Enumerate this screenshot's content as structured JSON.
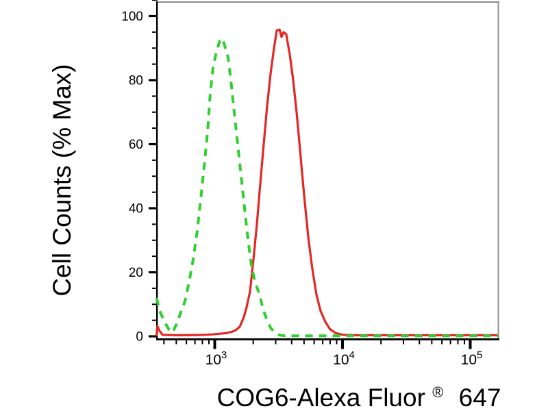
{
  "page": {
    "background": "#ffffff",
    "description_labels": {
      "ylabel": "Cell Counts (% Max)",
      "xlabel_full": "COG6-Alexa Fluor® 647"
    }
  },
  "chart_data": {
    "type": "line",
    "subtype": "flow-cytometry-histogram-overlay",
    "title": "",
    "ylabel": "Cell Counts (% Max)",
    "xlabel": {
      "main": "COG6-Alexa Fluor",
      "sup": "®",
      "suffix": "647"
    },
    "x_scale": "log10",
    "x_range": [
      350,
      167000
    ],
    "y_range": [
      0,
      105
    ],
    "grid": false,
    "legend": "none",
    "colors": {
      "axis": "#000000",
      "frame": "#8e8e8e",
      "background": "#ffffff"
    },
    "y_axis": {
      "major_ticks": [
        0,
        20,
        40,
        60,
        80,
        100
      ],
      "minor_ticks": [
        5,
        10,
        15,
        25,
        30,
        35,
        45,
        50,
        55,
        65,
        70,
        75,
        85,
        90,
        95,
        105
      ]
    },
    "x_axis": {
      "major_ticks": [
        {
          "value": 1000,
          "base": "10",
          "exponent": "3"
        },
        {
          "value": 10000,
          "base": "10",
          "exponent": "4"
        },
        {
          "value": 100000,
          "base": "10",
          "exponent": "5"
        }
      ],
      "minor_ticks": [
        400,
        500,
        600,
        700,
        800,
        900,
        2000,
        3000,
        4000,
        5000,
        6000,
        7000,
        8000,
        9000,
        20000,
        30000,
        40000,
        50000,
        60000,
        70000,
        80000,
        90000
      ]
    },
    "series": [
      {
        "name": "red-solid",
        "color": "#e42522",
        "style": "solid",
        "width": 3.2,
        "peak_x": 3100,
        "peak_y": 95.8,
        "points": [
          [
            350,
            0
          ],
          [
            356,
            3.2
          ],
          [
            366,
            2.0
          ],
          [
            389,
            0.5
          ],
          [
            516,
            0.35
          ],
          [
            703,
            0.4
          ],
          [
            847,
            0.5
          ],
          [
            957,
            0.6
          ],
          [
            1084,
            0.8
          ],
          [
            1225,
            1.0
          ],
          [
            1353,
            1.4
          ],
          [
            1458,
            1.9
          ],
          [
            1570,
            3.0
          ],
          [
            1690,
            6.0
          ],
          [
            1774,
            9.0
          ],
          [
            1888,
            14
          ],
          [
            2009,
            24
          ],
          [
            2138,
            35
          ],
          [
            2275,
            48
          ],
          [
            2417,
            60
          ],
          [
            2570,
            72
          ],
          [
            2735,
            82
          ],
          [
            2911,
            90
          ],
          [
            3056,
            95.5
          ],
          [
            3214,
            95.8
          ],
          [
            3334,
            93.5
          ],
          [
            3459,
            95.0
          ],
          [
            3631,
            94.3
          ],
          [
            3864,
            88
          ],
          [
            4111,
            80
          ],
          [
            4375,
            70
          ],
          [
            4655,
            58
          ],
          [
            5011,
            44
          ],
          [
            5394,
            31
          ],
          [
            5807,
            21
          ],
          [
            6252,
            13
          ],
          [
            6730,
            8
          ],
          [
            7345,
            4.5
          ],
          [
            8000,
            2.2
          ],
          [
            8837,
            1.0
          ],
          [
            10000,
            0.5
          ],
          [
            12800,
            0.35
          ],
          [
            166800,
            0.35
          ]
        ]
      },
      {
        "name": "green-dashed",
        "color": "#2fcf30",
        "style": "dashed",
        "width": 4,
        "peak_x": 1150,
        "peak_y": 93.0,
        "points": [
          [
            350,
            12
          ],
          [
            370,
            8
          ],
          [
            404,
            4.5
          ],
          [
            440,
            2.0
          ],
          [
            468,
            1.2
          ],
          [
            504,
            4.0
          ],
          [
            543,
            7.5
          ],
          [
            585,
            11
          ],
          [
            630,
            17
          ],
          [
            678,
            24
          ],
          [
            730,
            33
          ],
          [
            777,
            43
          ],
          [
            826,
            53
          ],
          [
            879,
            64
          ],
          [
            923,
            76
          ],
          [
            971,
            84
          ],
          [
            1031,
            89
          ],
          [
            1097,
            92.3
          ],
          [
            1153,
            93.0
          ],
          [
            1211,
            90
          ],
          [
            1273,
            87
          ],
          [
            1337,
            80
          ],
          [
            1403,
            72
          ],
          [
            1493,
            62
          ],
          [
            1589,
            52
          ],
          [
            1690,
            42
          ],
          [
            1799,
            32
          ],
          [
            1936,
            22
          ],
          [
            2084,
            16.5
          ],
          [
            2245,
            13
          ],
          [
            2388,
            8.5
          ],
          [
            2541,
            5.5
          ],
          [
            2735,
            2.7
          ],
          [
            2944,
            1.2
          ],
          [
            3214,
            0.4
          ],
          [
            3548,
            0.15
          ],
          [
            166800,
            0.15
          ]
        ]
      }
    ]
  }
}
